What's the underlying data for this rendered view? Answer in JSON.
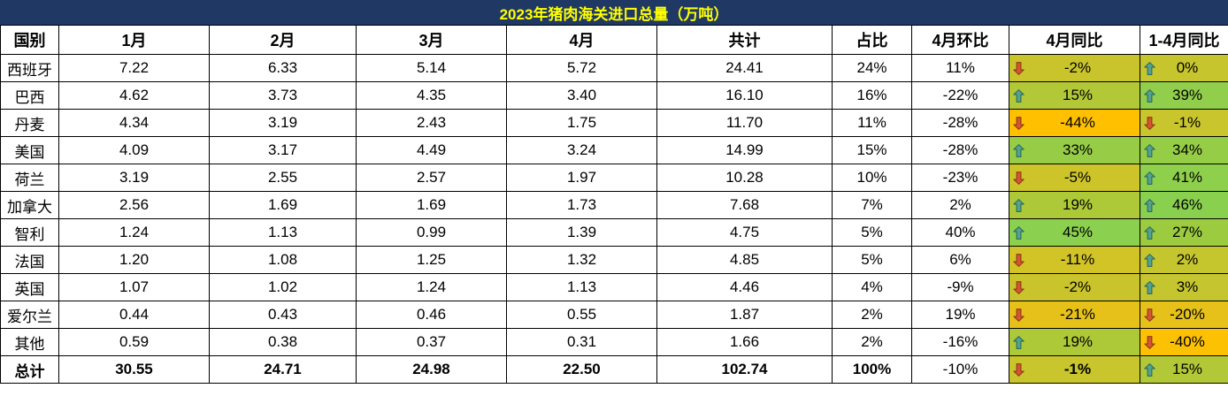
{
  "title": "2023年猪肉海关进口总量（万吨）",
  "colors": {
    "title_bg": "#1f3864",
    "title_text": "#ffff00",
    "grid_border": "#000000",
    "up_arrow_fill": "#55a28f",
    "up_arrow_stroke": "#2e6b5e",
    "down_arrow_fill": "#d4572f",
    "down_arrow_stroke": "#8e3a1b"
  },
  "chart_data": {
    "type": "table",
    "title": "2023年猪肉海关进口总量（万吨）",
    "columns": [
      "国别",
      "1月",
      "2月",
      "3月",
      "4月",
      "共计",
      "占比",
      "4月环比",
      "4月同比",
      "1-4月同比"
    ],
    "rows": [
      {
        "country": "西班牙",
        "jan": "7.22",
        "feb": "6.33",
        "mar": "5.14",
        "apr": "5.72",
        "total": "24.41",
        "share": "24%",
        "mom_apr": "11%",
        "yoy_apr": {
          "value": "-2%",
          "dir": "down",
          "bg": "#c9c42b",
          "bold": false
        },
        "yoy_jan_apr": {
          "value": "0%",
          "dir": "up",
          "bg": "#c6c52d",
          "bold": false
        },
        "bold": false
      },
      {
        "country": "巴西",
        "jan": "4.62",
        "feb": "3.73",
        "mar": "4.35",
        "apr": "3.40",
        "total": "16.10",
        "share": "16%",
        "mom_apr": "-22%",
        "yoy_apr": {
          "value": "15%",
          "dir": "up",
          "bg": "#b2c837",
          "bold": false
        },
        "yoy_jan_apr": {
          "value": "39%",
          "dir": "up",
          "bg": "#90ce4b",
          "bold": false
        },
        "bold": false
      },
      {
        "country": "丹麦",
        "jan": "4.34",
        "feb": "3.19",
        "mar": "2.43",
        "apr": "1.75",
        "total": "11.70",
        "share": "11%",
        "mom_apr": "-28%",
        "yoy_apr": {
          "value": "-44%",
          "dir": "down",
          "bg": "#ffc000",
          "bold": false
        },
        "yoy_jan_apr": {
          "value": "-1%",
          "dir": "down",
          "bg": "#c9c52c",
          "bold": false
        },
        "bold": false
      },
      {
        "country": "美国",
        "jan": "4.09",
        "feb": "3.17",
        "mar": "4.49",
        "apr": "3.24",
        "total": "14.99",
        "share": "15%",
        "mom_apr": "-28%",
        "yoy_apr": {
          "value": "33%",
          "dir": "up",
          "bg": "#97cd46",
          "bold": false
        },
        "yoy_jan_apr": {
          "value": "34%",
          "dir": "up",
          "bg": "#96cd47",
          "bold": false
        },
        "bold": false
      },
      {
        "country": "荷兰",
        "jan": "3.19",
        "feb": "2.55",
        "mar": "2.57",
        "apr": "1.97",
        "total": "10.28",
        "share": "10%",
        "mom_apr": "-23%",
        "yoy_apr": {
          "value": "-5%",
          "dir": "down",
          "bg": "#cdc42a",
          "bold": false
        },
        "yoy_jan_apr": {
          "value": "41%",
          "dir": "up",
          "bg": "#8ecf4c",
          "bold": false
        },
        "bold": false
      },
      {
        "country": "加拿大",
        "jan": "2.56",
        "feb": "1.69",
        "mar": "1.69",
        "apr": "1.73",
        "total": "7.68",
        "share": "7%",
        "mom_apr": "2%",
        "yoy_apr": {
          "value": "19%",
          "dir": "up",
          "bg": "#aec938",
          "bold": false
        },
        "yoy_jan_apr": {
          "value": "46%",
          "dir": "up",
          "bg": "#89d04f",
          "bold": false
        },
        "bold": false
      },
      {
        "country": "智利",
        "jan": "1.24",
        "feb": "1.13",
        "mar": "0.99",
        "apr": "1.39",
        "total": "4.75",
        "share": "5%",
        "mom_apr": "40%",
        "yoy_apr": {
          "value": "45%",
          "dir": "up",
          "bg": "#8bd04e",
          "bold": false
        },
        "yoy_jan_apr": {
          "value": "27%",
          "dir": "up",
          "bg": "#9ccb40",
          "bold": false
        },
        "bold": false
      },
      {
        "country": "法国",
        "jan": "1.20",
        "feb": "1.08",
        "mar": "1.25",
        "apr": "1.32",
        "total": "4.85",
        "share": "5%",
        "mom_apr": "6%",
        "yoy_apr": {
          "value": "-11%",
          "dir": "down",
          "bg": "#d2c427",
          "bold": false
        },
        "yoy_jan_apr": {
          "value": "2%",
          "dir": "up",
          "bg": "#c5c52e",
          "bold": false
        },
        "bold": false
      },
      {
        "country": "英国",
        "jan": "1.07",
        "feb": "1.02",
        "mar": "1.24",
        "apr": "1.13",
        "total": "4.46",
        "share": "4%",
        "mom_apr": "-9%",
        "yoy_apr": {
          "value": "-2%",
          "dir": "down",
          "bg": "#c9c42b",
          "bold": false
        },
        "yoy_jan_apr": {
          "value": "3%",
          "dir": "up",
          "bg": "#c4c52f",
          "bold": false
        },
        "bold": false
      },
      {
        "country": "爱尔兰",
        "jan": "0.44",
        "feb": "0.43",
        "mar": "0.46",
        "apr": "0.55",
        "total": "1.87",
        "share": "2%",
        "mom_apr": "19%",
        "yoy_apr": {
          "value": "-21%",
          "dir": "down",
          "bg": "#e6c119",
          "bold": false
        },
        "yoy_jan_apr": {
          "value": "-20%",
          "dir": "down",
          "bg": "#e5c11a",
          "bold": false
        },
        "bold": false
      },
      {
        "country": "其他",
        "jan": "0.59",
        "feb": "0.38",
        "mar": "0.37",
        "apr": "0.31",
        "total": "1.66",
        "share": "2%",
        "mom_apr": "-16%",
        "yoy_apr": {
          "value": "19%",
          "dir": "up",
          "bg": "#aec938",
          "bold": false
        },
        "yoy_jan_apr": {
          "value": "-40%",
          "dir": "down",
          "bg": "#fdc103",
          "bold": false
        },
        "bold": false
      },
      {
        "country": "总计",
        "jan": "30.55",
        "feb": "24.71",
        "mar": "24.98",
        "apr": "22.50",
        "total": "102.74",
        "share": "100%",
        "mom_apr": "-10%",
        "yoy_apr": {
          "value": "-1%",
          "dir": "down",
          "bg": "#c9c52c",
          "bold": true
        },
        "yoy_jan_apr": {
          "value": "15%",
          "dir": "up",
          "bg": "#b2c837",
          "bold": false
        },
        "bold": true
      }
    ]
  },
  "layout_column_widths": [
    66,
    170,
    166,
    170,
    170,
    198,
    90,
    110,
    148,
    100
  ]
}
